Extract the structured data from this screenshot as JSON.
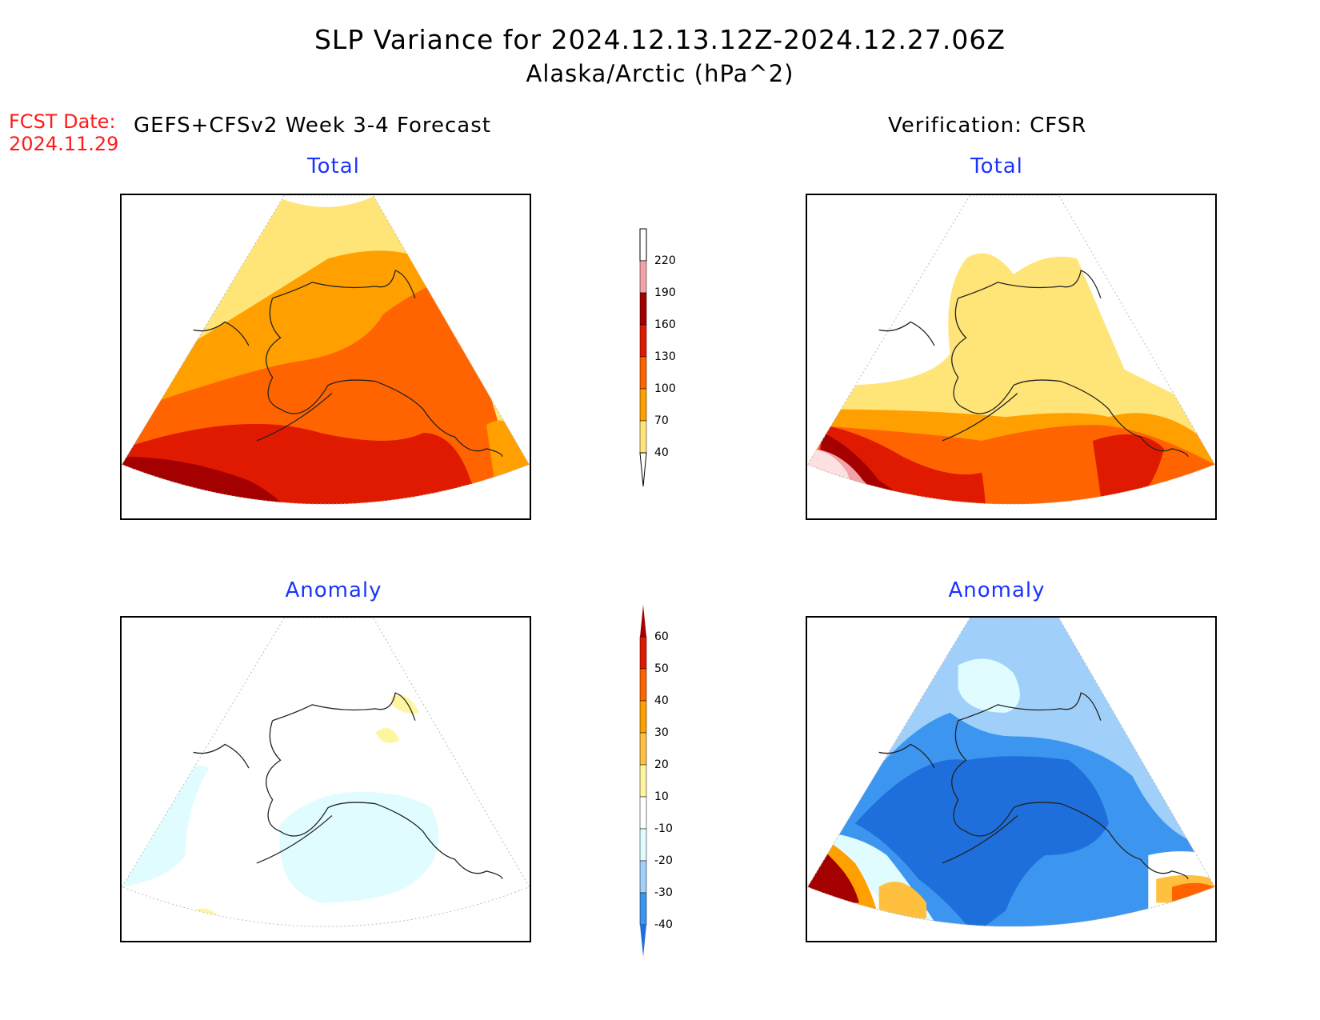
{
  "figure": {
    "title_line1": "SLP Variance for 2024.12.13.12Z-2024.12.27.06Z",
    "title_line2": "Alaska/Arctic (hPa^2)",
    "fcst_label": "FCST Date:",
    "fcst_date": "2024.11.29",
    "left_column_title": "GEFS+CFSv2 Week 3-4 Forecast",
    "right_column_title": "Verification: CFSR"
  },
  "panels": {
    "forecast_total": {
      "subtitle": "Total"
    },
    "verification_total": {
      "subtitle": "Total"
    },
    "forecast_anomaly": {
      "subtitle": "Anomaly"
    },
    "verification_anomaly": {
      "subtitle": "Anomaly"
    }
  },
  "colorbars": {
    "total": {
      "levels": [
        "220",
        "190",
        "160",
        "130",
        "100",
        "70",
        "40"
      ],
      "colors": [
        "#fde0e0",
        "#f3a3a8",
        "#a50000",
        "#e01a00",
        "#ff6400",
        "#ffa000",
        "#ffe478",
        "#ffffff"
      ]
    },
    "anomaly": {
      "levels": [
        "60",
        "50",
        "40",
        "30",
        "20",
        "10",
        "-10",
        "-20",
        "-30",
        "-40"
      ],
      "colors": [
        "#a50000",
        "#e01a00",
        "#ff6400",
        "#ffa000",
        "#ffc040",
        "#fff5a0",
        "#ffffff",
        "#e0fcff",
        "#a0d0fa",
        "#3c96f0",
        "#1e6edc"
      ]
    }
  }
}
